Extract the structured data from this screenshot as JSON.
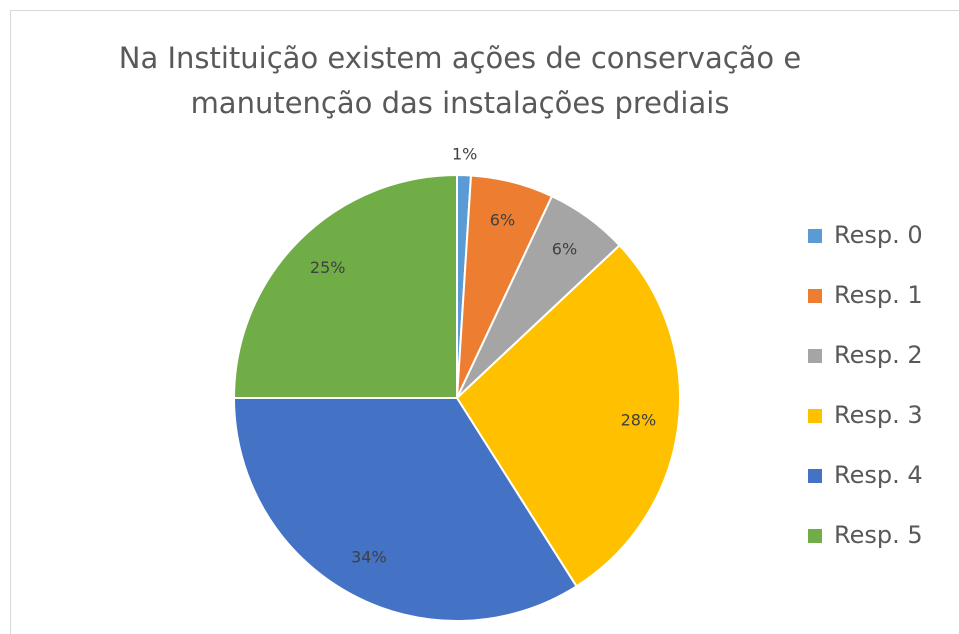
{
  "chart_data": {
    "type": "pie",
    "title": "Na Instituição existem ações de conservação e manutenção das instalações prediais",
    "categories": [
      "Resp. 0",
      "Resp. 1",
      "Resp. 2",
      "Resp. 3",
      "Resp. 4",
      "Resp. 5"
    ],
    "values": [
      1,
      6,
      6,
      28,
      34,
      25
    ],
    "value_labels": [
      "1%",
      "6%",
      "6%",
      "28%",
      "34%",
      "25%"
    ],
    "colors": [
      "#5b9bd5",
      "#ed7d31",
      "#a5a5a5",
      "#ffc000",
      "#4472c4",
      "#70ad47"
    ],
    "legend": "right"
  }
}
